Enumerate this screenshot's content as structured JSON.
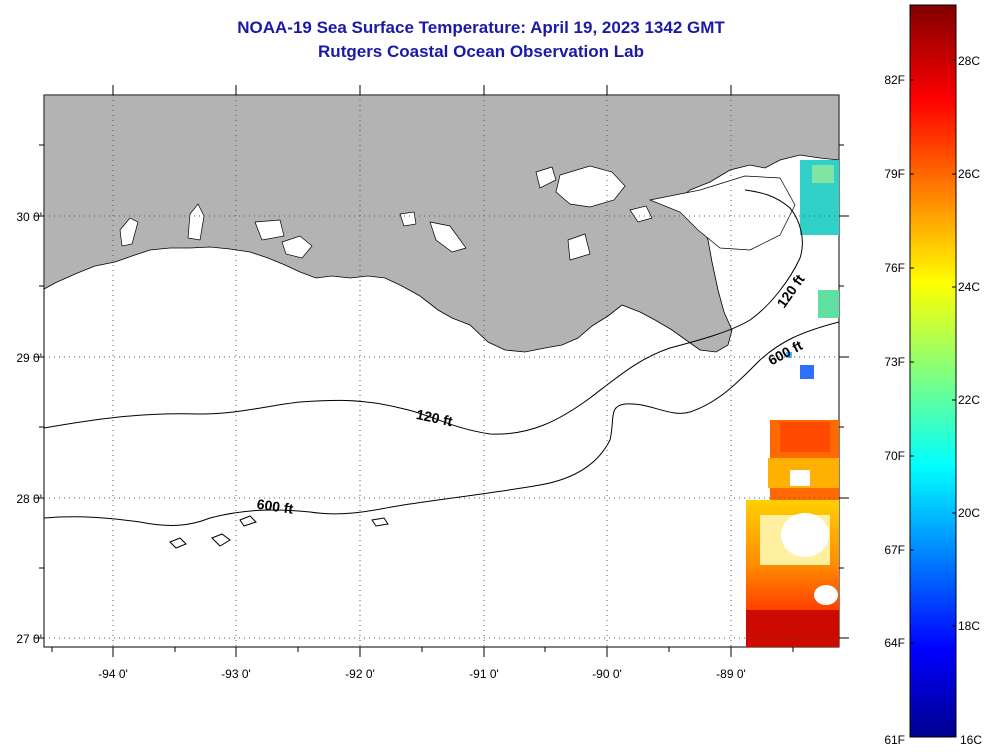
{
  "header": {
    "title": "NOAA-19 Sea Surface Temperature:  April 19, 2023 1342 GMT",
    "subtitle": "Rutgers Coastal Ocean Observation Lab"
  },
  "map": {
    "lat_labels": [
      "30 0'",
      "29 0'",
      "28 0'",
      "27 0'"
    ],
    "lon_labels": [
      "-94 0'",
      "-93 0'",
      "-92 0'",
      "-91 0'",
      "-90 0'",
      "-89 0'"
    ],
    "contour_labels": {
      "c120_west": "120 ft",
      "c600_west": "600 ft",
      "c120_east": "120 ft",
      "c600_east": "600 ft"
    },
    "colors": {
      "land": "#b3b3b3",
      "water": "#ffffff",
      "contour": "#000000"
    }
  },
  "colorbar": {
    "fahrenheit_ticks": [
      "82F",
      "79F",
      "76F",
      "73F",
      "70F",
      "67F",
      "64F",
      "61F"
    ],
    "celsius_ticks": [
      "28C",
      "26C",
      "24C",
      "22C",
      "20C",
      "18C",
      "16C"
    ],
    "colormap": "jet",
    "range_celsius": [
      16,
      29.2
    ]
  }
}
